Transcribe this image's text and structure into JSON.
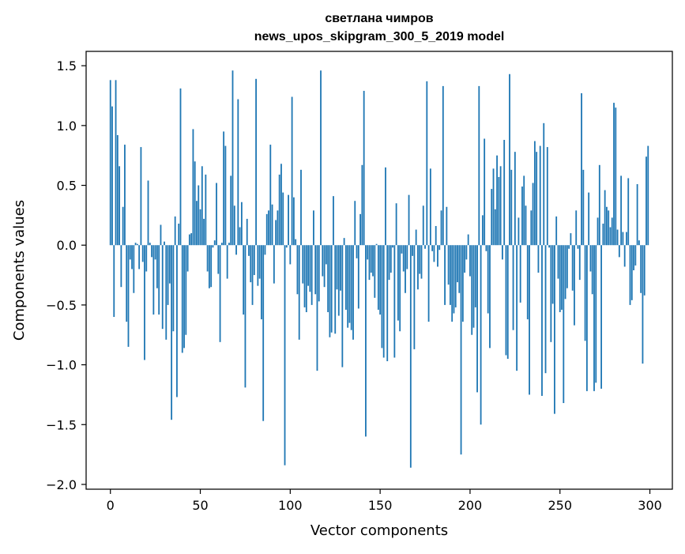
{
  "chart_data": {
    "type": "bar",
    "title_line1": "светлана чимров",
    "title_line2": "news_upos_skipgram_300_5_2019 model",
    "xlabel": "Vector components",
    "ylabel": "Components values",
    "xlim": [
      -13.5,
      312.5
    ],
    "ylim": [
      -2.04,
      1.62
    ],
    "xticks": [
      0,
      50,
      100,
      150,
      200,
      250,
      300
    ],
    "xtick_labels": [
      "0",
      "50",
      "100",
      "150",
      "200",
      "250",
      "300"
    ],
    "yticks": [
      1.5,
      1.0,
      0.5,
      0.0,
      -0.5,
      -1.0,
      -1.5,
      -2.0
    ],
    "ytick_labels": [
      "1.5",
      "1.0",
      "0.5",
      "0.0",
      "−0.5",
      "−1.0",
      "−1.5",
      "−2.0"
    ],
    "bar_color": "#1f77b4",
    "grid": false,
    "legend": "none",
    "values": [
      1.38,
      1.16,
      -0.6,
      1.38,
      0.92,
      0.66,
      -0.35,
      0.32,
      0.84,
      -0.64,
      -0.85,
      -0.12,
      -0.2,
      -0.4,
      0.02,
      0.01,
      -0.2,
      0.82,
      -0.14,
      -0.96,
      -0.22,
      0.54,
      0.02,
      -0.1,
      -0.58,
      -0.12,
      -0.36,
      -0.58,
      0.17,
      -0.7,
      0.03,
      -0.79,
      -0.5,
      -0.32,
      -1.46,
      -0.72,
      0.24,
      -1.27,
      0.18,
      1.31,
      -0.9,
      -0.86,
      -0.75,
      -0.22,
      0.09,
      0.1,
      0.97,
      0.7,
      0.37,
      0.5,
      0.3,
      0.66,
      0.22,
      0.59,
      -0.22,
      -0.36,
      -0.35,
      -0.02,
      0.04,
      0.52,
      -0.24,
      -0.81,
      0.02,
      0.95,
      0.83,
      -0.28,
      0.02,
      0.58,
      1.46,
      0.33,
      -0.08,
      1.22,
      0.15,
      0.36,
      -0.58,
      -1.19,
      0.22,
      -0.09,
      -0.31,
      -0.5,
      -0.25,
      1.39,
      -0.34,
      -0.28,
      -0.62,
      -1.47,
      -0.08,
      0.26,
      0.29,
      0.84,
      0.34,
      -0.32,
      0.21,
      0.29,
      0.59,
      0.68,
      0.44,
      -1.84,
      -0.02,
      0.42,
      -0.16,
      1.24,
      0.4,
      0.05,
      -0.41,
      -0.79,
      0.63,
      -0.32,
      -0.52,
      -0.56,
      -0.34,
      -0.39,
      -0.5,
      0.29,
      -0.41,
      -1.05,
      -0.47,
      1.46,
      -0.26,
      -0.35,
      -0.16,
      -0.56,
      -0.77,
      -0.73,
      0.41,
      -0.74,
      -0.37,
      -0.59,
      -0.38,
      -1.02,
      0.06,
      -0.54,
      -0.69,
      -0.65,
      -0.71,
      -0.79,
      0.37,
      -0.11,
      -0.53,
      0.26,
      0.67,
      1.29,
      -1.6,
      -0.12,
      -0.29,
      -0.23,
      -0.26,
      -0.44,
      0.01,
      -0.54,
      -0.58,
      -0.86,
      -0.94,
      0.65,
      -0.97,
      -0.29,
      -0.23,
      -0.02,
      -0.94,
      0.35,
      -0.63,
      -0.72,
      -0.07,
      -0.22,
      -0.4,
      -0.2,
      0.42,
      -1.86,
      -0.09,
      -0.87,
      0.13,
      -0.37,
      -0.24,
      -0.28,
      0.33,
      -0.03,
      1.37,
      -0.64,
      0.64,
      -0.05,
      -0.14,
      0.16,
      -0.18,
      -0.04,
      0.29,
      1.33,
      -0.5,
      0.32,
      -0.33,
      -0.5,
      -0.64,
      -0.57,
      -0.52,
      -0.31,
      -0.4,
      -1.75,
      -0.64,
      -0.23,
      -0.12,
      0.09,
      -0.26,
      -0.75,
      -0.69,
      -0.52,
      -1.23,
      1.33,
      -1.5,
      0.25,
      0.89,
      -0.05,
      -0.57,
      -0.86,
      0.47,
      0.64,
      0.3,
      0.75,
      0.57,
      0.66,
      -0.12,
      0.88,
      -0.92,
      -0.95,
      1.43,
      0.63,
      -0.71,
      0.78,
      -1.05,
      0.23,
      -0.48,
      0.49,
      0.58,
      0.33,
      -0.62,
      -1.25,
      0.29,
      0.52,
      0.87,
      0.78,
      -0.23,
      0.83,
      -1.26,
      1.02,
      -1.07,
      0.82,
      -0.02,
      -0.81,
      -0.49,
      -1.41,
      0.24,
      -0.28,
      -0.56,
      -0.54,
      -1.32,
      -0.45,
      -0.36,
      -0.03,
      0.1,
      -0.38,
      -0.67,
      0.29,
      -0.03,
      -0.29,
      1.27,
      0.63,
      -0.8,
      -1.22,
      0.44,
      -0.22,
      -0.41,
      -1.22,
      -1.15,
      0.23,
      0.67,
      -1.2,
      0.18,
      0.46,
      0.32,
      0.29,
      0.15,
      0.23,
      1.19,
      1.15,
      0.13,
      -0.1,
      0.58,
      0.11,
      -0.18,
      0.11,
      0.56,
      -0.5,
      -0.46,
      -0.21,
      -0.17,
      0.51,
      0.04,
      -0.4,
      -0.99,
      -0.42,
      0.74,
      0.83
    ]
  }
}
